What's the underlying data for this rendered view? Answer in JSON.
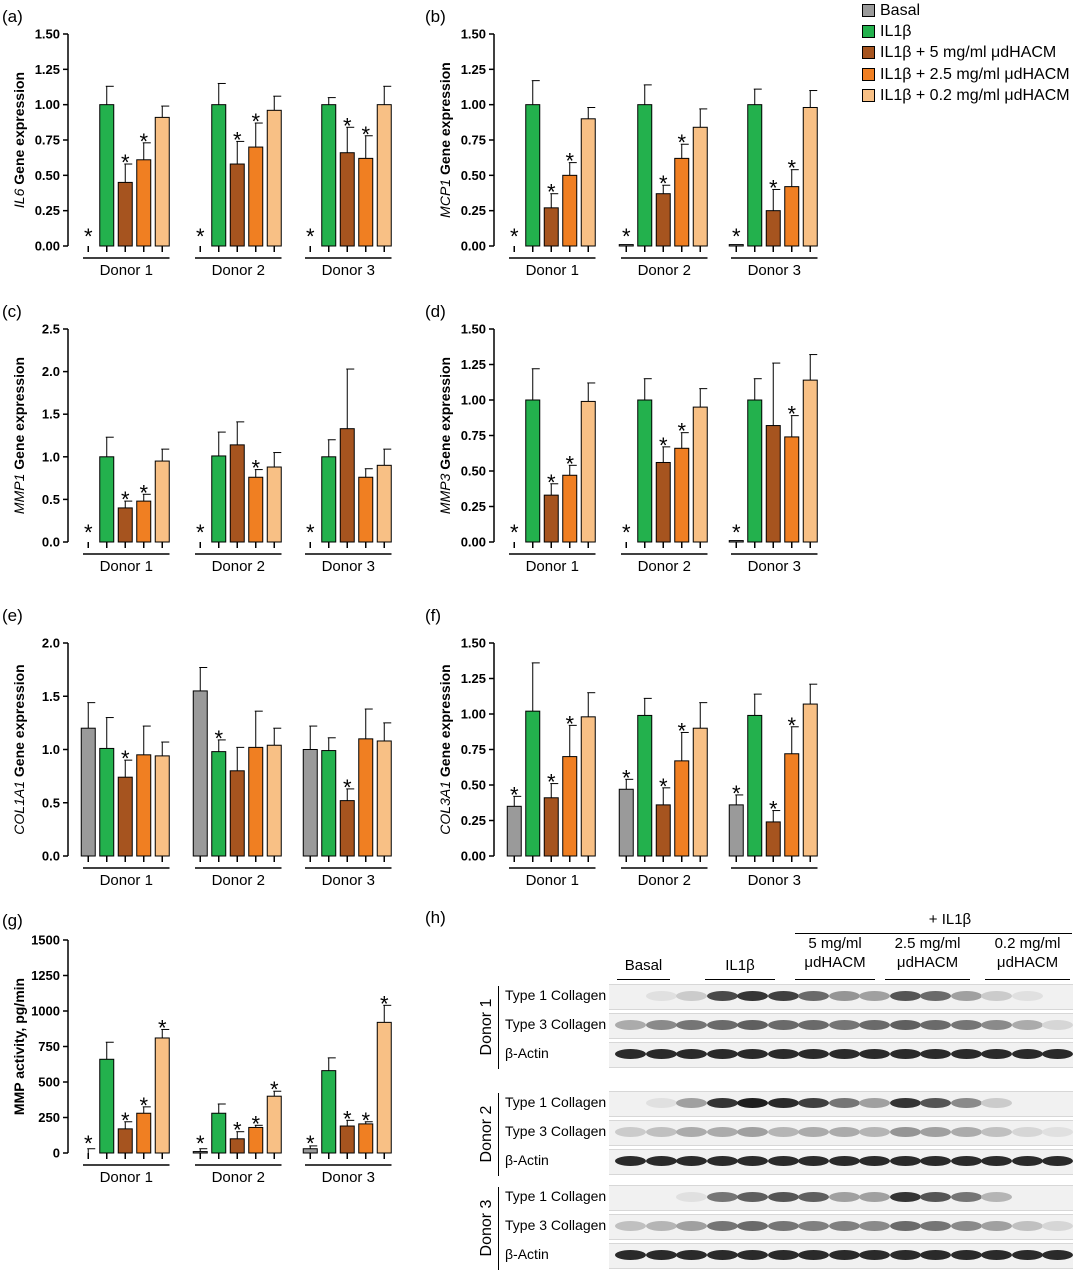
{
  "legend": {
    "items": [
      {
        "label": "Basal",
        "color": "#9a9a9a"
      },
      {
        "label": "IL1β",
        "color": "#23b14d"
      },
      {
        "label": "IL1β + 5 mg/ml  μdHACM",
        "color": "#a6541f"
      },
      {
        "label": "IL1β + 2.5 mg/ml  μdHACM",
        "color": "#f07f22"
      },
      {
        "label": "IL1β + 0.2 mg/ml  μdHACM",
        "color": "#f8c085"
      }
    ]
  },
  "chart_data": [
    {
      "panel": "(a)",
      "type": "bar",
      "ylabel_italic": "IL6",
      "ylabel_rest": " Gene expression",
      "ylim": [
        0,
        1.5
      ],
      "ticks": [
        "0.00",
        "0.25",
        "0.50",
        "0.75",
        "1.00",
        "1.25",
        "1.50"
      ],
      "categories": [
        "Donor 1",
        "Donor 2",
        "Donor 3"
      ],
      "series": [
        {
          "name": "Basal",
          "values": [
            0,
            0,
            0
          ],
          "err": [
            0,
            0,
            0
          ],
          "star": [
            true,
            true,
            true
          ]
        },
        {
          "name": "IL1β",
          "values": [
            1.0,
            1.0,
            1.0
          ],
          "err": [
            0.13,
            0.15,
            0.05
          ],
          "star": [
            false,
            false,
            false
          ]
        },
        {
          "name": "IL1β + 5 mg/ml μdHACM",
          "values": [
            0.45,
            0.58,
            0.66
          ],
          "err": [
            0.13,
            0.16,
            0.18
          ],
          "star": [
            true,
            true,
            true
          ]
        },
        {
          "name": "IL1β + 2.5 mg/ml μdHACM",
          "values": [
            0.61,
            0.7,
            0.62
          ],
          "err": [
            0.12,
            0.17,
            0.16
          ],
          "star": [
            true,
            true,
            true
          ]
        },
        {
          "name": "IL1β + 0.2 mg/ml μdHACM",
          "values": [
            0.91,
            0.96,
            1.0
          ],
          "err": [
            0.08,
            0.1,
            0.13
          ],
          "star": [
            false,
            false,
            false
          ]
        }
      ]
    },
    {
      "panel": "(b)",
      "type": "bar",
      "ylabel_italic": "MCP1",
      "ylabel_rest": " Gene expression",
      "ylim": [
        0,
        1.5
      ],
      "ticks": [
        "0.00",
        "0.25",
        "0.50",
        "0.75",
        "1.00",
        "1.25",
        "1.50"
      ],
      "categories": [
        "Donor 1",
        "Donor 2",
        "Donor 3"
      ],
      "series": [
        {
          "name": "Basal",
          "values": [
            0.0,
            0.01,
            0.01
          ],
          "err": [
            0,
            0,
            0
          ],
          "star": [
            true,
            true,
            true
          ]
        },
        {
          "name": "IL1β",
          "values": [
            1.0,
            1.0,
            1.0
          ],
          "err": [
            0.17,
            0.14,
            0.11
          ],
          "star": [
            false,
            false,
            false
          ]
        },
        {
          "name": "IL1β + 5 mg/ml μdHACM",
          "values": [
            0.27,
            0.37,
            0.25
          ],
          "err": [
            0.1,
            0.06,
            0.15
          ],
          "star": [
            true,
            true,
            true
          ]
        },
        {
          "name": "IL1β + 2.5 mg/ml μdHACM",
          "values": [
            0.5,
            0.62,
            0.42
          ],
          "err": [
            0.09,
            0.1,
            0.12
          ],
          "star": [
            true,
            true,
            true
          ]
        },
        {
          "name": "IL1β + 0.2 mg/ml μdHACM",
          "values": [
            0.9,
            0.84,
            0.98
          ],
          "err": [
            0.08,
            0.13,
            0.12
          ],
          "star": [
            false,
            false,
            false
          ]
        }
      ]
    },
    {
      "panel": "(c)",
      "type": "bar",
      "ylabel_italic": "MMP1",
      "ylabel_rest": " Gene expression",
      "ylim": [
        0,
        2.5
      ],
      "ticks": [
        "0.0",
        "0.5",
        "1.0",
        "1.5",
        "2.0",
        "2.5"
      ],
      "categories": [
        "Donor 1",
        "Donor 2",
        "Donor 3"
      ],
      "series": [
        {
          "name": "Basal",
          "values": [
            0,
            0,
            0
          ],
          "err": [
            0,
            0,
            0
          ],
          "star": [
            true,
            true,
            true
          ]
        },
        {
          "name": "IL1β",
          "values": [
            1.0,
            1.01,
            1.0
          ],
          "err": [
            0.23,
            0.28,
            0.2
          ],
          "star": [
            false,
            false,
            false
          ]
        },
        {
          "name": "IL1β + 5 mg/ml μdHACM",
          "values": [
            0.4,
            1.14,
            1.33
          ],
          "err": [
            0.08,
            0.27,
            0.7
          ],
          "star": [
            true,
            false,
            false
          ]
        },
        {
          "name": "IL1β + 2.5 mg/ml μdHACM",
          "values": [
            0.48,
            0.76,
            0.76
          ],
          "err": [
            0.08,
            0.09,
            0.1
          ],
          "star": [
            true,
            true,
            false
          ]
        },
        {
          "name": "IL1β + 0.2 mg/ml μdHACM",
          "values": [
            0.95,
            0.88,
            0.9
          ],
          "err": [
            0.14,
            0.17,
            0.19
          ],
          "star": [
            false,
            false,
            false
          ]
        }
      ]
    },
    {
      "panel": "(d)",
      "type": "bar",
      "ylabel_italic": "MMP3",
      "ylabel_rest": " Gene expression",
      "ylim": [
        0,
        1.5
      ],
      "ticks": [
        "0.00",
        "0.25",
        "0.50",
        "0.75",
        "1.00",
        "1.25",
        "1.50"
      ],
      "categories": [
        "Donor 1",
        "Donor 2",
        "Donor 3"
      ],
      "series": [
        {
          "name": "Basal",
          "values": [
            0.0,
            0.0,
            0.01
          ],
          "err": [
            0,
            0,
            0
          ],
          "star": [
            true,
            true,
            true
          ]
        },
        {
          "name": "IL1β",
          "values": [
            1.0,
            1.0,
            1.0
          ],
          "err": [
            0.22,
            0.15,
            0.15
          ],
          "star": [
            false,
            false,
            false
          ]
        },
        {
          "name": "IL1β + 5 mg/ml μdHACM",
          "values": [
            0.33,
            0.56,
            0.82
          ],
          "err": [
            0.08,
            0.11,
            0.44
          ],
          "star": [
            true,
            true,
            false
          ]
        },
        {
          "name": "IL1β + 2.5 mg/ml μdHACM",
          "values": [
            0.47,
            0.66,
            0.74
          ],
          "err": [
            0.07,
            0.11,
            0.15
          ],
          "star": [
            true,
            true,
            true
          ]
        },
        {
          "name": "IL1β + 0.2 mg/ml μdHACM",
          "values": [
            0.99,
            0.95,
            1.14
          ],
          "err": [
            0.13,
            0.13,
            0.18
          ],
          "star": [
            false,
            false,
            false
          ]
        }
      ]
    },
    {
      "panel": "(e)",
      "type": "bar",
      "ylabel_italic": "COL1A1",
      "ylabel_rest": " Gene expression",
      "ylim": [
        0,
        2.0
      ],
      "ticks": [
        "0.0",
        "0.5",
        "1.0",
        "1.5",
        "2.0"
      ],
      "categories": [
        "Donor 1",
        "Donor 2",
        "Donor 3"
      ],
      "series": [
        {
          "name": "Basal",
          "values": [
            1.2,
            1.55,
            1.0
          ],
          "err": [
            0.24,
            0.22,
            0.22
          ],
          "star": [
            false,
            false,
            false
          ]
        },
        {
          "name": "IL1β",
          "values": [
            1.01,
            0.98,
            0.99
          ],
          "err": [
            0.29,
            0.11,
            0.12
          ],
          "star": [
            false,
            true,
            false
          ]
        },
        {
          "name": "IL1β + 5 mg/ml μdHACM",
          "values": [
            0.74,
            0.8,
            0.52
          ],
          "err": [
            0.16,
            0.22,
            0.11
          ],
          "star": [
            true,
            false,
            true
          ]
        },
        {
          "name": "IL1β + 2.5 mg/ml μdHACM",
          "values": [
            0.95,
            1.02,
            1.1
          ],
          "err": [
            0.27,
            0.34,
            0.28
          ],
          "star": [
            false,
            false,
            false
          ]
        },
        {
          "name": "IL1β + 0.2 mg/ml μdHACM",
          "values": [
            0.94,
            1.04,
            1.08
          ],
          "err": [
            0.13,
            0.16,
            0.17
          ],
          "star": [
            false,
            false,
            false
          ]
        }
      ]
    },
    {
      "panel": "(f)",
      "type": "bar",
      "ylabel_italic": "COL3A1",
      "ylabel_rest": " Gene expression",
      "ylim": [
        0,
        1.5
      ],
      "ticks": [
        "0.00",
        "0.25",
        "0.50",
        "0.75",
        "1.00",
        "1.25",
        "1.50"
      ],
      "categories": [
        "Donor 1",
        "Donor 2",
        "Donor 3"
      ],
      "series": [
        {
          "name": "Basal",
          "values": [
            0.35,
            0.47,
            0.36
          ],
          "err": [
            0.07,
            0.07,
            0.07
          ],
          "star": [
            true,
            true,
            true
          ]
        },
        {
          "name": "IL1β",
          "values": [
            1.02,
            0.99,
            0.99
          ],
          "err": [
            0.34,
            0.12,
            0.15
          ],
          "star": [
            false,
            false,
            false
          ]
        },
        {
          "name": "IL1β + 5 mg/ml μdHACM",
          "values": [
            0.41,
            0.36,
            0.24
          ],
          "err": [
            0.1,
            0.12,
            0.08
          ],
          "star": [
            true,
            true,
            true
          ]
        },
        {
          "name": "IL1β + 2.5 mg/ml μdHACM",
          "values": [
            0.7,
            0.67,
            0.72
          ],
          "err": [
            0.22,
            0.2,
            0.19
          ],
          "star": [
            true,
            true,
            true
          ]
        },
        {
          "name": "IL1β + 0.2 mg/ml μdHACM",
          "values": [
            0.98,
            0.9,
            1.07
          ],
          "err": [
            0.17,
            0.18,
            0.14
          ],
          "star": [
            false,
            false,
            false
          ]
        }
      ]
    },
    {
      "panel": "(g)",
      "type": "bar",
      "ylabel_italic": "",
      "ylabel_rest": "MMP activity, pg/min",
      "ylim": [
        0,
        1500
      ],
      "ticks": [
        "0",
        "250",
        "500",
        "750",
        "1000",
        "1250",
        "1500"
      ],
      "categories": [
        "Donor 1",
        "Donor 2",
        "Donor 3"
      ],
      "series": [
        {
          "name": "Basal",
          "values": [
            0,
            10,
            30
          ],
          "err": [
            30,
            20,
            20
          ],
          "star": [
            true,
            true,
            true
          ]
        },
        {
          "name": "IL1β",
          "values": [
            660,
            280,
            580
          ],
          "err": [
            120,
            65,
            90
          ],
          "star": [
            false,
            false,
            false
          ]
        },
        {
          "name": "IL1β + 5 mg/ml μdHACM",
          "values": [
            170,
            100,
            190
          ],
          "err": [
            50,
            50,
            40
          ],
          "star": [
            true,
            true,
            true
          ]
        },
        {
          "name": "IL1β + 2.5 mg/ml μdHACM",
          "values": [
            280,
            180,
            205
          ],
          "err": [
            45,
            15,
            15
          ],
          "star": [
            true,
            true,
            true
          ]
        },
        {
          "name": "IL1β + 0.2 mg/ml μdHACM",
          "values": [
            810,
            400,
            920
          ],
          "err": [
            60,
            35,
            120
          ],
          "star": [
            true,
            true,
            true
          ]
        }
      ]
    }
  ],
  "blot": {
    "panel": "(h)",
    "plus_label": "+ IL1β",
    "lanes": [
      {
        "line1": "Basal",
        "line2": ""
      },
      {
        "line1": "IL1β",
        "line2": ""
      },
      {
        "line1": "5 mg/ml",
        "line2": "μdHACM"
      },
      {
        "line1": "2.5 mg/ml",
        "line2": "μdHACM"
      },
      {
        "line1": "0.2 mg/ml",
        "line2": "μdHACM"
      }
    ],
    "donors": [
      {
        "label": "Donor 1",
        "rows": [
          {
            "name": "Type 1 Collagen",
            "intensity": [
              0,
              0.05,
              0.15,
              0.75,
              0.85,
              0.8,
              0.6,
              0.4,
              0.35,
              0.7,
              0.6,
              0.35,
              0.15,
              0.05,
              0
            ]
          },
          {
            "name": "Type 3 Collagen",
            "intensity": [
              0.3,
              0.45,
              0.55,
              0.6,
              0.65,
              0.6,
              0.6,
              0.55,
              0.6,
              0.65,
              0.6,
              0.55,
              0.45,
              0.3,
              0.1
            ]
          },
          {
            "name": "β-Actin",
            "intensity": [
              0.9,
              0.9,
              0.9,
              0.9,
              0.9,
              0.9,
              0.9,
              0.9,
              0.9,
              0.9,
              0.9,
              0.9,
              0.9,
              0.9,
              0.9
            ]
          }
        ]
      },
      {
        "label": "Donor 2",
        "rows": [
          {
            "name": "Type 1 Collagen",
            "intensity": [
              0,
              0.05,
              0.35,
              0.85,
              0.95,
              0.9,
              0.8,
              0.55,
              0.35,
              0.85,
              0.7,
              0.45,
              0.15,
              0,
              0
            ]
          },
          {
            "name": "Type 3 Collagen",
            "intensity": [
              0.15,
              0.2,
              0.3,
              0.3,
              0.35,
              0.25,
              0.3,
              0.3,
              0.25,
              0.4,
              0.35,
              0.3,
              0.2,
              0.1,
              0.05
            ]
          },
          {
            "name": "β-Actin",
            "intensity": [
              0.9,
              0.9,
              0.9,
              0.9,
              0.9,
              0.9,
              0.9,
              0.9,
              0.9,
              0.9,
              0.9,
              0.9,
              0.9,
              0.9,
              0.9
            ]
          }
        ]
      },
      {
        "label": "Donor 3",
        "rows": [
          {
            "name": "Type 1 Collagen",
            "intensity": [
              0,
              0,
              0.05,
              0.55,
              0.65,
              0.7,
              0.65,
              0.35,
              0.35,
              0.85,
              0.7,
              0.55,
              0.25,
              0,
              0
            ]
          },
          {
            "name": "Type 3 Collagen",
            "intensity": [
              0.2,
              0.25,
              0.35,
              0.55,
              0.6,
              0.55,
              0.5,
              0.5,
              0.45,
              0.6,
              0.55,
              0.45,
              0.35,
              0.2,
              0.1
            ]
          },
          {
            "name": "β-Actin",
            "intensity": [
              0.9,
              0.9,
              0.9,
              0.9,
              0.9,
              0.9,
              0.9,
              0.9,
              0.9,
              0.9,
              0.9,
              0.9,
              0.9,
              0.9,
              0.9
            ]
          }
        ]
      }
    ]
  }
}
